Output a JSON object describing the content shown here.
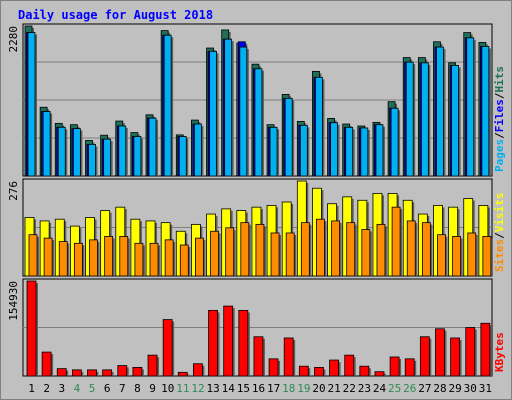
{
  "title": "Daily usage for August 2018",
  "colors": {
    "background": "#c0c0c0",
    "panel": "#c0c0c0",
    "title": "#0000ff",
    "hits": "#1f6f5a",
    "files": "#0000ff",
    "pages": "#00b0f0",
    "visits": "#ffff00",
    "sites": "#ff8c00",
    "kbytes": "#ff0000",
    "weekend_label": "#2e8b57",
    "weekday_label": "#000000"
  },
  "chart_data": [
    {
      "type": "bar",
      "name": "hits-files-pages",
      "categories": [
        "1",
        "2",
        "3",
        "4",
        "5",
        "6",
        "7",
        "8",
        "9",
        "10",
        "11",
        "12",
        "13",
        "14",
        "15",
        "16",
        "17",
        "18",
        "19",
        "20",
        "21",
        "22",
        "23",
        "24",
        "25",
        "26",
        "27",
        "28",
        "29",
        "30",
        "31"
      ],
      "ymax_label": "2280",
      "ylim": [
        0,
        2280
      ],
      "right_labels": [
        "Pages",
        "/",
        "Files",
        "/",
        "Hits"
      ],
      "series": [
        {
          "name": "Hits",
          "values": [
            2280,
            1045,
            800,
            780,
            540,
            620,
            835,
            660,
            930,
            2210,
            625,
            850,
            1945,
            2220,
            2020,
            1700,
            780,
            1240,
            830,
            1590,
            875,
            790,
            760,
            815,
            1130,
            1800,
            1800,
            2040,
            1720,
            2180,
            2030
          ]
        },
        {
          "name": "Files",
          "values": [
            2180,
            980,
            740,
            720,
            480,
            560,
            760,
            600,
            880,
            2140,
            600,
            790,
            1895,
            2080,
            2040,
            1630,
            740,
            1180,
            770,
            1500,
            810,
            740,
            730,
            780,
            1030,
            1730,
            1720,
            1960,
            1680,
            2100,
            1970
          ]
        },
        {
          "name": "Pages",
          "values": [
            2180,
            980,
            740,
            720,
            480,
            560,
            760,
            600,
            880,
            2140,
            600,
            790,
            1895,
            2080,
            1960,
            1630,
            740,
            1180,
            770,
            1500,
            810,
            740,
            730,
            780,
            1030,
            1730,
            1720,
            1960,
            1680,
            2100,
            1970
          ]
        }
      ]
    },
    {
      "type": "bar",
      "name": "visits-sites",
      "categories": [
        "1",
        "2",
        "3",
        "4",
        "5",
        "6",
        "7",
        "8",
        "9",
        "10",
        "11",
        "12",
        "13",
        "14",
        "15",
        "16",
        "17",
        "18",
        "19",
        "20",
        "21",
        "22",
        "23",
        "24",
        "25",
        "26",
        "27",
        "28",
        "29",
        "30",
        "31"
      ],
      "ymax_label": "276",
      "ylim": [
        0,
        276
      ],
      "right_labels": [
        "Sites",
        "/",
        "Visits"
      ],
      "series": [
        {
          "name": "Visits",
          "values": [
            170,
            160,
            165,
            145,
            170,
            190,
            200,
            165,
            160,
            155,
            130,
            150,
            180,
            195,
            190,
            200,
            205,
            215,
            276,
            255,
            210,
            230,
            220,
            240,
            240,
            220,
            180,
            205,
            200,
            225,
            205
          ]
        },
        {
          "name": "Sites",
          "values": [
            120,
            110,
            100,
            95,
            105,
            115,
            115,
            95,
            95,
            105,
            90,
            110,
            130,
            140,
            155,
            150,
            125,
            125,
            155,
            165,
            160,
            155,
            135,
            150,
            200,
            160,
            155,
            120,
            115,
            125,
            115
          ]
        }
      ]
    },
    {
      "type": "bar",
      "name": "kbytes",
      "categories": [
        "1",
        "2",
        "3",
        "4",
        "5",
        "6",
        "7",
        "8",
        "9",
        "10",
        "11",
        "12",
        "13",
        "14",
        "15",
        "16",
        "17",
        "18",
        "19",
        "20",
        "21",
        "22",
        "23",
        "24",
        "25",
        "26",
        "27",
        "28",
        "29",
        "30",
        "31"
      ],
      "ymax_label": "154930",
      "ylim": [
        0,
        154930
      ],
      "right_labels": [
        "KBytes"
      ],
      "series": [
        {
          "name": "KBytes",
          "values": [
            154930,
            39000,
            12000,
            10000,
            10000,
            10000,
            17000,
            14000,
            34000,
            92000,
            6000,
            20000,
            107000,
            114000,
            107000,
            64000,
            28000,
            62000,
            16000,
            14000,
            26000,
            34000,
            16000,
            7000,
            31000,
            28000,
            64000,
            77000,
            62000,
            79000,
            86000
          ]
        }
      ]
    }
  ],
  "weekend_days": [
    "4",
    "5",
    "11",
    "12",
    "18",
    "19",
    "25",
    "26"
  ]
}
